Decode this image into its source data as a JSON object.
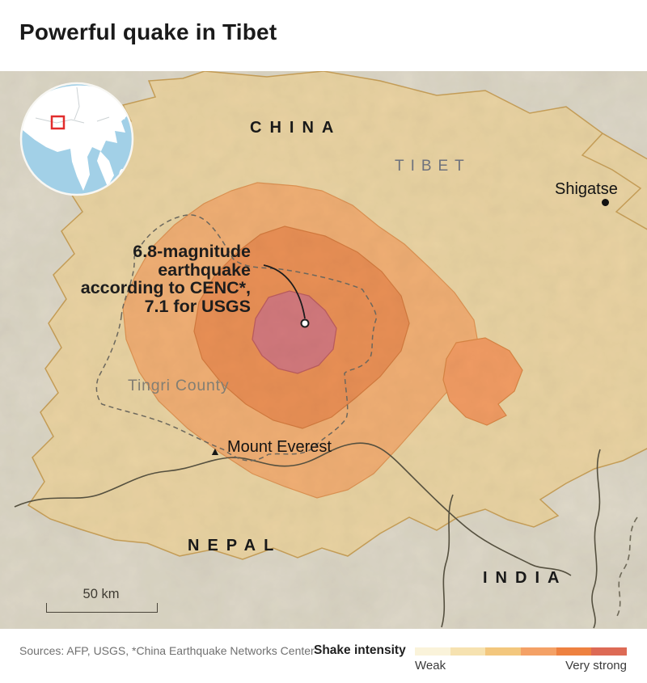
{
  "title": "Powerful quake in Tibet",
  "map": {
    "country_labels": {
      "china": "CHINA",
      "tibet": "TIBET",
      "nepal": "NEPAL",
      "india": "INDIA"
    },
    "place_labels": {
      "shigatse": "Shigatse",
      "tingri": "Tingri County",
      "everest": "Mount Everest"
    },
    "annotation": {
      "lines": [
        "6.8-magnitude",
        "earthquake",
        "according to CENC*,",
        "7.1 for USGS"
      ]
    },
    "scale_label": "50 km",
    "marker_icons": {
      "everest": "▲"
    }
  },
  "inset": {
    "ocean_color": "#a2d0e7",
    "land_color": "#ffffff",
    "highlight_color": "#e12d2d"
  },
  "legend": {
    "title": "Shake intensity",
    "min_label": "Weak",
    "max_label": "Very strong",
    "colors": [
      "#faf3da",
      "#f6e2b0",
      "#f3c77d",
      "#f4a166",
      "#ee8140",
      "#dd6a55"
    ]
  },
  "footer": {
    "sources": "Sources: AFP, USGS, *China Earthquake Networks Center"
  },
  "colors": {
    "base": "#e2dccd",
    "zone_weak": "#e9d2a0",
    "zone_weak_border": "#c79f58",
    "zone_light": "#efae74",
    "zone_light_border": "#dd9252",
    "zone_moderate": "#e88f55",
    "zone_moderate_border": "#d37a3e",
    "zone_east": "#f09b63",
    "zone_east_border": "#d98544",
    "zone_severe": "#d1787c",
    "zone_severe_border": "#bb5c5f",
    "country_border": "#55503f",
    "county_dash": "#6b675d"
  }
}
